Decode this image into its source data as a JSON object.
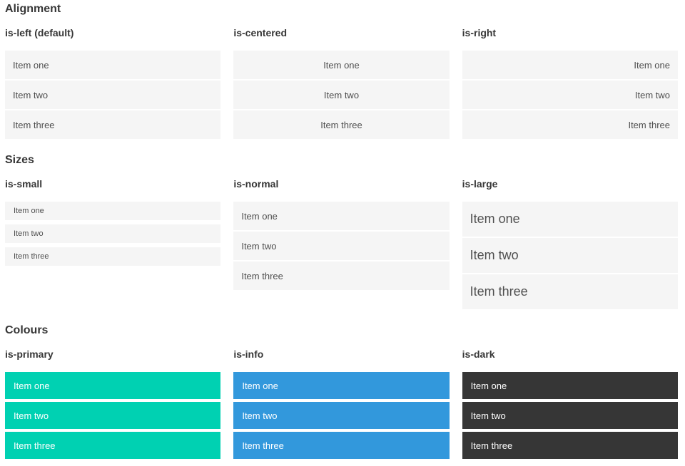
{
  "colors": {
    "primary": "#00d1b2",
    "info": "#3298dc",
    "dark": "#363636",
    "light_item_bg": "#f5f5f5",
    "item_text": "#4f4f4f",
    "heading_text": "#363636",
    "colored_item_text": "#ffffff"
  },
  "sections": [
    {
      "title": "Alignment",
      "columns": [
        {
          "header": "is-left (default)",
          "items": [
            "Item one",
            "Item two",
            "Item three"
          ]
        },
        {
          "header": "is-centered",
          "items": [
            "Item one",
            "Item two",
            "Item three"
          ]
        },
        {
          "header": "is-right",
          "items": [
            "Item one",
            "Item two",
            "Item three"
          ]
        }
      ]
    },
    {
      "title": "Sizes",
      "columns": [
        {
          "header": "is-small",
          "items": [
            "Item one",
            "Item two",
            "Item three"
          ]
        },
        {
          "header": "is-normal",
          "items": [
            "Item one",
            "Item two",
            "Item three"
          ]
        },
        {
          "header": "is-large",
          "items": [
            "Item one",
            "Item two",
            "Item three"
          ]
        }
      ]
    },
    {
      "title": "Colours",
      "columns": [
        {
          "header": "is-primary",
          "items": [
            "Item one",
            "Item two",
            "Item three"
          ]
        },
        {
          "header": "is-info",
          "items": [
            "Item one",
            "Item two",
            "Item three"
          ]
        },
        {
          "header": "is-dark",
          "items": [
            "Item one",
            "Item two",
            "Item three"
          ]
        }
      ]
    }
  ]
}
